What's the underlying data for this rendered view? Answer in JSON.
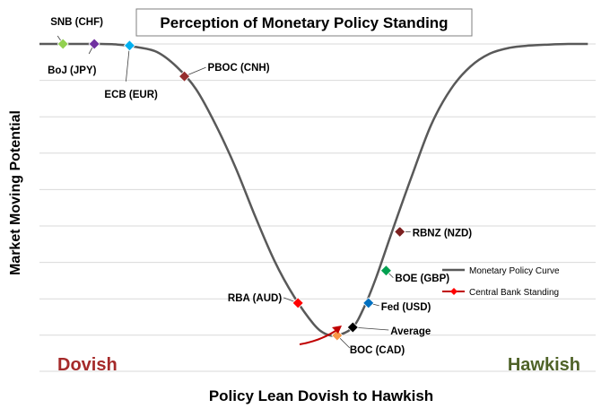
{
  "chart_data": {
    "type": "line",
    "title": "Perception of Monetary Policy Standing",
    "xlabel": "Policy Lean Dovish to Hawkish",
    "ylabel": "Market Moving Potential",
    "xlim": [
      0,
      14.2
    ],
    "ylim": [
      0,
      9
    ],
    "grid": true,
    "corner_labels": {
      "left": "Dovish",
      "right": "Hawkish"
    },
    "legend": {
      "position": "bottom-right",
      "entries": [
        "Monetary Policy Curve",
        "Central Bank Standing"
      ]
    },
    "series": [
      {
        "name": "Monetary Policy Curve",
        "color": "#595959",
        "x": [
          0.0,
          0.5,
          1.0,
          1.5,
          2.0,
          2.5,
          3.0,
          3.5,
          4.0,
          4.5,
          5.0,
          5.5,
          6.0,
          6.5,
          7.0,
          7.3,
          7.6,
          8.0,
          8.3,
          8.6,
          9.0,
          9.5,
          10.0,
          10.5,
          11.0,
          11.5,
          12.0,
          12.5,
          13.0,
          13.5,
          14.0
        ],
        "y": [
          9.0,
          9.0,
          9.0,
          9.0,
          8.98,
          8.9,
          8.75,
          8.3,
          7.6,
          6.5,
          5.2,
          3.7,
          2.3,
          1.2,
          0.35,
          0.05,
          0.0,
          0.25,
          0.9,
          1.8,
          3.2,
          4.9,
          6.5,
          7.6,
          8.3,
          8.7,
          8.88,
          8.95,
          8.98,
          9.0,
          9.0
        ]
      }
    ],
    "points": [
      {
        "label": "SNB (CHF)",
        "x": 0.6,
        "y": 9.0,
        "color": "#92d050"
      },
      {
        "label": "BoJ (JPY)",
        "x": 1.4,
        "y": 9.0,
        "color": "#7030a0"
      },
      {
        "label": "ECB (EUR)",
        "x": 2.3,
        "y": 8.95,
        "color": "#00b0f0"
      },
      {
        "label": "PBOC (CNH)",
        "x": 3.7,
        "y": 8.0,
        "color": "#952e2e"
      },
      {
        "label": "RBA (AUD)",
        "x": 6.6,
        "y": 1.0,
        "color": "#ff0000"
      },
      {
        "label": "BOC (CAD)",
        "x": 7.6,
        "y": 0.0,
        "color": "#f79646"
      },
      {
        "label": "Average",
        "x": 8.0,
        "y": 0.25,
        "color": "#000000"
      },
      {
        "label": "Fed (USD)",
        "x": 8.4,
        "y": 1.0,
        "color": "#0070c0"
      },
      {
        "label": "BOE (GBP)",
        "x": 8.85,
        "y": 2.0,
        "color": "#00a050"
      },
      {
        "label": "RBNZ (NZD)",
        "x": 9.2,
        "y": 3.2,
        "color": "#7b1f1f"
      }
    ]
  }
}
